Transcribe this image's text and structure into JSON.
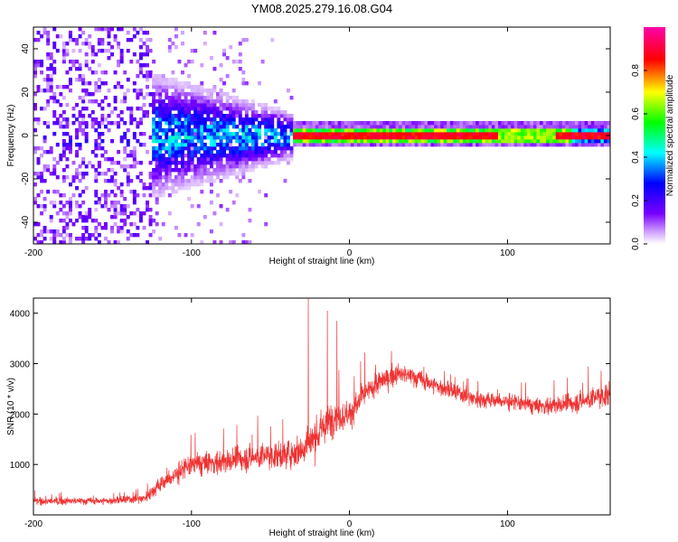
{
  "title": "YM08.2025.279.16.08.G04",
  "chart_data": [
    {
      "type": "heatmap",
      "name": "spectrogram",
      "xlabel": "Height of straight line (km)",
      "ylabel": "Frequency (Hz)",
      "xlim": [
        -200,
        165
      ],
      "ylim": [
        -50,
        50
      ],
      "xticks": [
        -200,
        -100,
        0,
        100
      ],
      "yticks": [
        -40,
        -20,
        0,
        20,
        40
      ],
      "colorbar": {
        "label": "Normalized spectral amplitude",
        "range": [
          0,
          1
        ],
        "ticks": [
          "0.0",
          "0.2",
          "0.4",
          "0.6",
          "0.8"
        ],
        "colors": [
          "#ffffff",
          "#7700ff",
          "#0000ff",
          "#00ffff",
          "#00ff00",
          "#ffff00",
          "#ff0000",
          "#ff00aa"
        ]
      },
      "features": [
        {
          "x_range": [
            -200,
            -125
          ],
          "description": "broadband scattered noise",
          "amplitude": 0.12
        },
        {
          "x_range": [
            -125,
            -35
          ],
          "freq_spread_hz": 8,
          "amplitude": 0.3
        },
        {
          "x_range": [
            -35,
            165
          ],
          "center_freq_hz": 0.5,
          "amplitude": 0.9
        }
      ]
    },
    {
      "type": "line",
      "name": "snr",
      "xlabel": "Height of straight line (km)",
      "ylabel": "SNR (10 * v/v)",
      "xlim": [
        -200,
        165
      ],
      "ylim": [
        0,
        4300
      ],
      "xticks": [
        -200,
        -100,
        0,
        100
      ],
      "yticks": [
        1000,
        2000,
        3000,
        4000
      ],
      "color": "#ee3333",
      "envelope": {
        "x": [
          -200,
          -150,
          -130,
          -120,
          -100,
          -80,
          -60,
          -40,
          -30,
          -20,
          -10,
          0,
          10,
          20,
          30,
          40,
          60,
          80,
          100,
          120,
          140,
          165
        ],
        "mean": [
          270,
          280,
          330,
          600,
          1000,
          1050,
          1150,
          1200,
          1300,
          1600,
          1950,
          2000,
          2400,
          2650,
          2800,
          2750,
          2500,
          2300,
          2250,
          2150,
          2200,
          2400
        ],
        "amp": [
          150,
          150,
          200,
          350,
          500,
          500,
          550,
          550,
          700,
          800,
          700,
          600,
          500,
          450,
          400,
          400,
          350,
          350,
          350,
          350,
          400,
          500
        ]
      },
      "spikes": [
        {
          "x": -26,
          "y": 4300
        },
        {
          "x": -14,
          "y": 4050
        },
        {
          "x": -8,
          "y": 3850
        }
      ]
    }
  ]
}
